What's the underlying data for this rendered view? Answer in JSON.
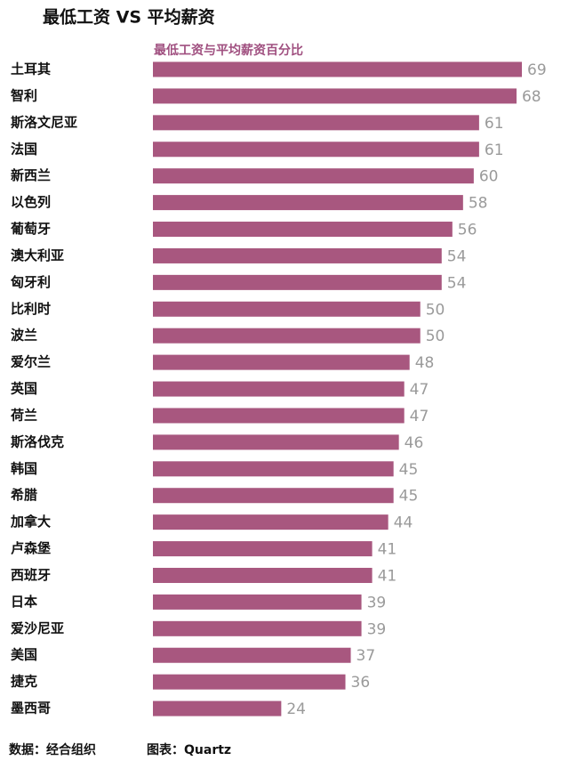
{
  "chart_data": {
    "type": "bar",
    "title": "最低工资 VS 平均薪资",
    "subtitle": "最低工资与平均薪资百分比",
    "categories": [
      "土耳其",
      "智利",
      "斯洛文尼亚",
      "法国",
      "新西兰",
      "以色列",
      "葡萄牙",
      "澳大利亚",
      "匈牙利",
      "比利时",
      "波兰",
      "爱尔兰",
      "英国",
      "荷兰",
      "斯洛伐克",
      "韩国",
      "希腊",
      "加拿大",
      "卢森堡",
      "西班牙",
      "日本",
      "爱沙尼亚",
      "美国",
      "捷克",
      "墨西哥"
    ],
    "values": [
      69,
      68,
      61,
      61,
      60,
      58,
      56,
      54,
      54,
      50,
      50,
      48,
      47,
      47,
      46,
      45,
      45,
      44,
      41,
      41,
      39,
      39,
      37,
      36,
      24
    ],
    "color": "#a8577f",
    "source": "数据：经合组织",
    "credit": "图表：Quartz"
  }
}
